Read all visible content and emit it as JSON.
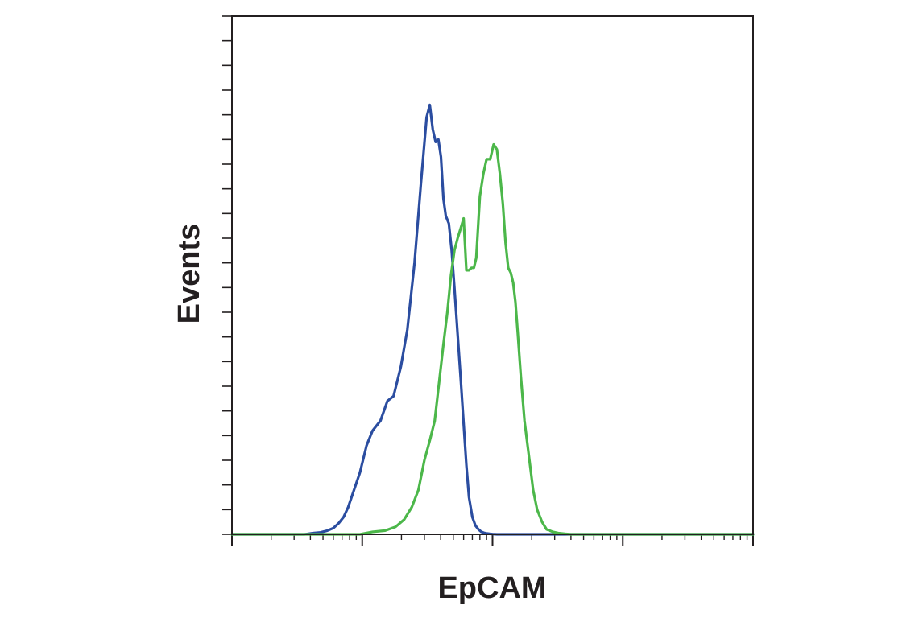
{
  "chart_data": {
    "type": "line",
    "title": "",
    "xlabel": "EpCAM",
    "ylabel": "Events",
    "x_scale": "log",
    "xlim": [
      1,
      10000
    ],
    "ylim": [
      0,
      21
    ],
    "x_tick_decades": [
      1,
      10,
      100,
      1000,
      10000
    ],
    "y_tick_count": 21,
    "tick_labels_shown": false,
    "grid": false,
    "legend": "none",
    "series": [
      {
        "color": "#2b4da0",
        "x": [
          1,
          3.6,
          4.2,
          4.8,
          5.4,
          6.0,
          6.6,
          7.2,
          7.8,
          8.4,
          9.6,
          10.8,
          12.0,
          13.8,
          15.6,
          17.4,
          19.8,
          22.2,
          25.2,
          28.2,
          31.2,
          33.0,
          34.8,
          36.6,
          38.4,
          40.2,
          42.0,
          43.8,
          46.2,
          48.6,
          51.0,
          54.0,
          57.0,
          60.0,
          63.0,
          66.0,
          70.0,
          74.0,
          78.0,
          82.0,
          86.0,
          90.0,
          95.0,
          100.0,
          108.0,
          118.0,
          130.0,
          150.0,
          10000
        ],
        "y": [
          0,
          0,
          0.05,
          0.08,
          0.15,
          0.25,
          0.45,
          0.7,
          1.1,
          1.6,
          2.5,
          3.6,
          4.2,
          4.6,
          5.4,
          5.6,
          6.8,
          8.3,
          11.0,
          14.2,
          16.9,
          17.4,
          16.4,
          15.9,
          16.0,
          15.3,
          13.6,
          12.9,
          12.6,
          11.5,
          10.0,
          8.1,
          6.3,
          4.5,
          2.8,
          1.5,
          0.7,
          0.35,
          0.2,
          0.1,
          0.06,
          0.04,
          0.02,
          0.01,
          0,
          0,
          0,
          0,
          0
        ]
      },
      {
        "color": "#4cb74a",
        "x": [
          1,
          9.6,
          12.0,
          15.0,
          18.0,
          21.0,
          24.0,
          27.0,
          30.0,
          33.0,
          36.0,
          39.0,
          42.0,
          45.0,
          48.0,
          51.0,
          54.0,
          57.0,
          60.0,
          63.0,
          66.0,
          69.0,
          72.0,
          75.0,
          80.0,
          85.0,
          90.0,
          96.0,
          102.0,
          108.0,
          114.0,
          120.0,
          126.0,
          132.0,
          138.0,
          144.0,
          150.0,
          156.0,
          165.0,
          176.0,
          190.0,
          205.0,
          220.0,
          240.0,
          260.0,
          290.0,
          320.0,
          360.0,
          400.0,
          10000
        ],
        "y": [
          0,
          0,
          0.1,
          0.15,
          0.3,
          0.6,
          1.1,
          1.8,
          3.0,
          3.8,
          4.6,
          6.2,
          7.7,
          9.0,
          10.5,
          11.5,
          12.0,
          12.4,
          12.8,
          10.7,
          10.7,
          10.8,
          10.8,
          11.2,
          13.7,
          14.6,
          15.2,
          15.2,
          15.8,
          15.6,
          14.6,
          13.4,
          11.8,
          10.8,
          10.6,
          10.2,
          9.4,
          8.2,
          6.4,
          4.6,
          3.2,
          1.8,
          1.0,
          0.5,
          0.2,
          0.1,
          0.05,
          0.02,
          0,
          0
        ]
      }
    ]
  }
}
